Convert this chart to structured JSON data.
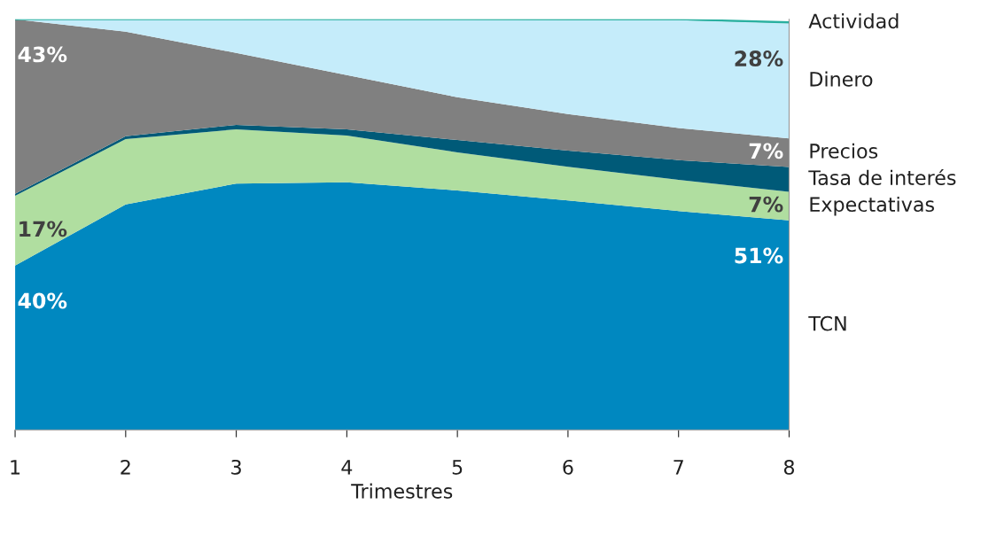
{
  "chart_data": {
    "type": "area",
    "stacked": true,
    "xlabel": "Trimestres",
    "x": [
      1,
      2,
      3,
      4,
      5,
      6,
      7,
      8
    ],
    "xlim": [
      1,
      8
    ],
    "xticks": [
      1,
      2,
      3,
      4,
      5,
      6,
      7,
      8
    ],
    "ylim": [
      0,
      100
    ],
    "tick_labels": "x",
    "grid": false,
    "legend": false,
    "series": [
      {
        "name": "TCN",
        "color": "#0088c0",
        "values": [
          40,
          54.9,
          60,
          60.3,
          58.3,
          55.9,
          53.3,
          51
        ],
        "value_labels": [
          "40%",
          null,
          null,
          null,
          null,
          null,
          null,
          "51%"
        ]
      },
      {
        "name": "Expectativas",
        "color": "#b0dea0",
        "values": [
          17,
          15.9,
          13.2,
          11.4,
          9.3,
          8.2,
          7.6,
          7
        ],
        "value_labels": [
          "17%",
          null,
          null,
          null,
          null,
          null,
          null,
          "7%"
        ]
      },
      {
        "name": "Tasa de interés",
        "color": "#005a78",
        "values": [
          0.5,
          0.7,
          1.1,
          1.5,
          3,
          3.9,
          4.8,
          6
        ]
      },
      {
        "name": "Precios",
        "color": "#808080",
        "values": [
          42.5,
          25.5,
          17.5,
          13.2,
          10.4,
          8.9,
          7.8,
          7
        ],
        "value_labels": [
          "43%",
          null,
          null,
          null,
          null,
          null,
          null,
          "7%"
        ]
      },
      {
        "name": "Dinero",
        "color": "#c5ecfa",
        "values": [
          0,
          3,
          8.2,
          13.5,
          18.9,
          22.9,
          26.3,
          28
        ],
        "value_labels": [
          null,
          null,
          null,
          null,
          null,
          null,
          null,
          "28%"
        ]
      },
      {
        "name": "Actividad",
        "color": "#2ab0a0",
        "values": [
          0,
          0,
          0,
          0.1,
          0.1,
          0.2,
          0.2,
          0.3
        ]
      }
    ]
  }
}
